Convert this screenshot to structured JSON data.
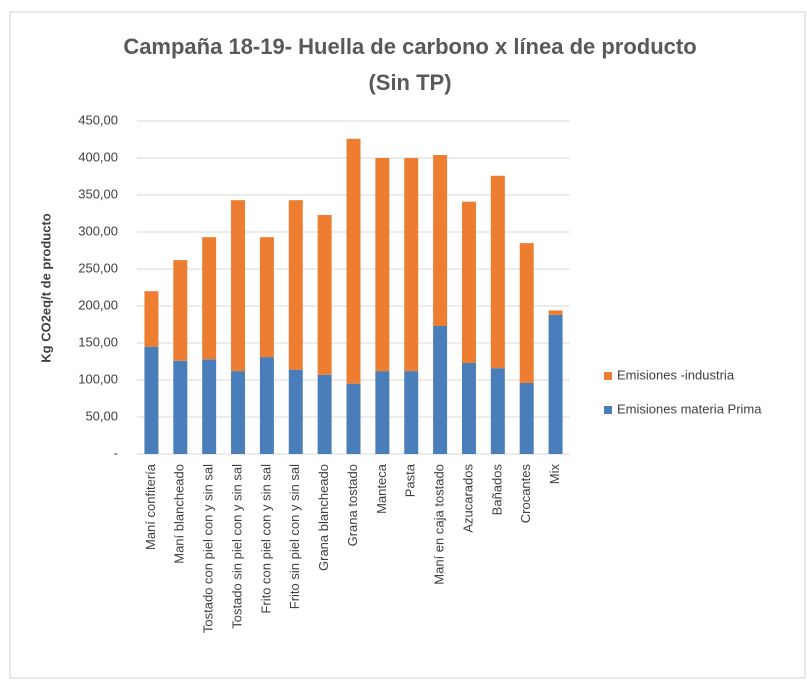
{
  "chart_data": {
    "type": "stacked_bar",
    "title": [
      "Campaña 18-19- Huella de carbono x línea de producto",
      "(Sin TP)"
    ],
    "y_label": "Kg CO2eq/t de producto",
    "categories": [
      "Maní confitería",
      "Maní blancheado",
      "Tostado con piel con y sin sal",
      "Tostado sin piel con y sin sal",
      "Frito con piel con y sin sal",
      "Frito sin piel con y sin sal",
      "Grana blancheado",
      "Grana tostado",
      "Manteca",
      "Pasta",
      "Maní en caja tostado",
      "Azucarados",
      "Bañados",
      "Crocantes",
      "Mix"
    ],
    "series": [
      {
        "name": "Emisiones materia Prima",
        "color": "#4a7ebb",
        "values": [
          145,
          126,
          128,
          112,
          131,
          114,
          107,
          95,
          112,
          112,
          173,
          123,
          116,
          96,
          188
        ]
      },
      {
        "name": "Emisiones -industria",
        "color": "#ed7d31",
        "values": [
          75,
          136,
          165,
          231,
          162,
          229,
          216,
          331,
          288,
          288,
          231,
          218,
          260,
          189,
          6
        ]
      }
    ],
    "ylim": [
      0,
      450
    ],
    "yticks": [
      {
        "value": 0,
        "label": "-"
      },
      {
        "value": 50,
        "label": "50,00"
      },
      {
        "value": 100,
        "label": "100,00"
      },
      {
        "value": 150,
        "label": "150,00"
      },
      {
        "value": 200,
        "label": "200,00"
      },
      {
        "value": 250,
        "label": "250,00"
      },
      {
        "value": 300,
        "label": "300,00"
      },
      {
        "value": 350,
        "label": "350,00"
      },
      {
        "value": 400,
        "label": "400,00"
      },
      {
        "value": 450,
        "label": "450,00"
      }
    ],
    "grid": true,
    "legend": "right"
  }
}
